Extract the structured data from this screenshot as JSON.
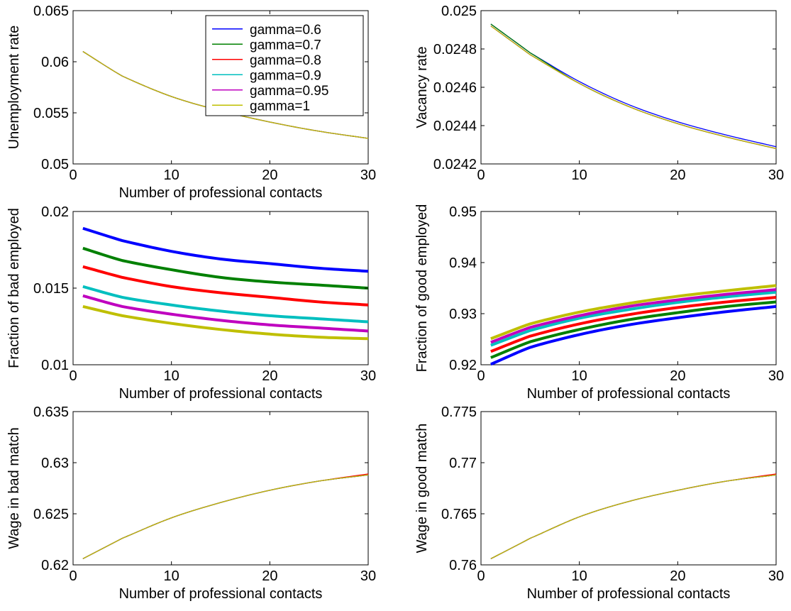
{
  "figure": {
    "legend": {
      "entries": [
        "gamma=0.6",
        "gamma=0.7",
        "gamma=0.8",
        "gamma=0.9",
        "gamma=0.95",
        "gamma=1"
      ],
      "colors": [
        "#0000ff",
        "#008000",
        "#ff0000",
        "#00bfbf",
        "#bf00bf",
        "#bfbf00"
      ],
      "position": "top-right"
    }
  },
  "chart_data": [
    {
      "type": "line",
      "xlabel": "Number of professional contacts",
      "ylabel": "Unemployment rate",
      "xlim": [
        0,
        30
      ],
      "ylim": [
        0.05,
        0.065
      ],
      "xticks": [
        0,
        10,
        20,
        30
      ],
      "xtick_labels": [
        "0",
        "10",
        "20",
        "30"
      ],
      "yticks": [
        0.05,
        0.055,
        0.06,
        0.065
      ],
      "ytick_labels": [
        "0.05",
        "0.055",
        "0.06",
        "0.065"
      ],
      "grid": false,
      "line_width": "thin",
      "x": [
        1,
        5,
        10,
        15,
        20,
        25,
        30
      ],
      "series": [
        {
          "name": "gamma=0.6",
          "color": "#0000ff",
          "values": [
            0.061,
            0.0586,
            0.0566,
            0.0552,
            0.0541,
            0.0532,
            0.0525
          ]
        },
        {
          "name": "gamma=0.7",
          "color": "#008000",
          "values": [
            0.061,
            0.0586,
            0.0566,
            0.0552,
            0.0541,
            0.0532,
            0.0525
          ]
        },
        {
          "name": "gamma=0.8",
          "color": "#ff0000",
          "values": [
            0.061,
            0.0586,
            0.0566,
            0.0552,
            0.0541,
            0.0532,
            0.0525
          ]
        },
        {
          "name": "gamma=0.9",
          "color": "#00bfbf",
          "values": [
            0.061,
            0.0586,
            0.0566,
            0.0552,
            0.0541,
            0.0532,
            0.0525
          ]
        },
        {
          "name": "gamma=0.95",
          "color": "#bf00bf",
          "values": [
            0.061,
            0.0586,
            0.0566,
            0.0552,
            0.0541,
            0.0532,
            0.0525
          ]
        },
        {
          "name": "gamma=1",
          "color": "#bfbf00",
          "values": [
            0.061,
            0.0586,
            0.0566,
            0.0552,
            0.0541,
            0.0532,
            0.0525
          ]
        }
      ]
    },
    {
      "type": "line",
      "xlabel": "",
      "ylabel": "Vacancy rate",
      "xlim": [
        0,
        30
      ],
      "ylim": [
        0.0242,
        0.025
      ],
      "xticks": [
        0,
        10,
        20,
        30
      ],
      "xtick_labels": [
        "0",
        "10",
        "20",
        "30"
      ],
      "yticks": [
        0.0242,
        0.0244,
        0.0246,
        0.0248,
        0.025
      ],
      "ytick_labels": [
        "0.0242",
        "0.0244",
        "0.0246",
        "0.0248",
        "0.025"
      ],
      "grid": false,
      "line_width": "thin",
      "x": [
        1,
        5,
        10,
        15,
        20,
        25,
        30
      ],
      "series": [
        {
          "name": "gamma=0.6",
          "color": "#0000ff",
          "values": [
            0.02493,
            0.02478,
            0.02463,
            0.02451,
            0.02442,
            0.02435,
            0.02429
          ]
        },
        {
          "name": "gamma=0.7",
          "color": "#008000",
          "values": [
            0.02493,
            0.02478,
            0.02462,
            0.0245,
            0.02441,
            0.02434,
            0.02428
          ]
        },
        {
          "name": "gamma=0.8",
          "color": "#ff0000",
          "values": [
            0.02492,
            0.02477,
            0.02462,
            0.0245,
            0.02441,
            0.02434,
            0.02428
          ]
        },
        {
          "name": "gamma=0.9",
          "color": "#00bfbf",
          "values": [
            0.02492,
            0.02477,
            0.02462,
            0.0245,
            0.02441,
            0.02434,
            0.02428
          ]
        },
        {
          "name": "gamma=0.95",
          "color": "#bf00bf",
          "values": [
            0.02492,
            0.02477,
            0.02462,
            0.0245,
            0.02441,
            0.02434,
            0.02428
          ]
        },
        {
          "name": "gamma=1",
          "color": "#bfbf00",
          "values": [
            0.02492,
            0.02477,
            0.02462,
            0.0245,
            0.02441,
            0.02434,
            0.02428
          ]
        }
      ]
    },
    {
      "type": "line",
      "xlabel": "Number of professional contacts",
      "ylabel": "Fraction of bad employed",
      "xlim": [
        0,
        30
      ],
      "ylim": [
        0.01,
        0.02
      ],
      "xticks": [
        0,
        10,
        20,
        30
      ],
      "xtick_labels": [
        "0",
        "10",
        "20",
        "30"
      ],
      "yticks": [
        0.01,
        0.015,
        0.02
      ],
      "ytick_labels": [
        "0.01",
        "0.015",
        "0.02"
      ],
      "grid": false,
      "line_width": "thick",
      "x": [
        1,
        5,
        10,
        15,
        20,
        25,
        30
      ],
      "series": [
        {
          "name": "gamma=0.6",
          "color": "#0000ff",
          "values": [
            0.0189,
            0.0181,
            0.0174,
            0.0169,
            0.0166,
            0.0163,
            0.0161
          ]
        },
        {
          "name": "gamma=0.7",
          "color": "#008000",
          "values": [
            0.0176,
            0.0168,
            0.0162,
            0.0157,
            0.0154,
            0.0152,
            0.015
          ]
        },
        {
          "name": "gamma=0.8",
          "color": "#ff0000",
          "values": [
            0.0164,
            0.0157,
            0.0151,
            0.0147,
            0.0144,
            0.0141,
            0.0139
          ]
        },
        {
          "name": "gamma=0.9",
          "color": "#00bfbf",
          "values": [
            0.0151,
            0.0144,
            0.0139,
            0.0135,
            0.0132,
            0.013,
            0.0128
          ]
        },
        {
          "name": "gamma=0.95",
          "color": "#bf00bf",
          "values": [
            0.0145,
            0.0138,
            0.0133,
            0.0129,
            0.0126,
            0.0124,
            0.0122
          ]
        },
        {
          "name": "gamma=1",
          "color": "#bfbf00",
          "values": [
            0.0138,
            0.0132,
            0.0127,
            0.0123,
            0.012,
            0.0118,
            0.0117
          ]
        }
      ]
    },
    {
      "type": "line",
      "xlabel": "Number of professional contacts",
      "ylabel": "Fraction of good employed",
      "xlim": [
        0,
        30
      ],
      "ylim": [
        0.92,
        0.95
      ],
      "xticks": [
        0,
        10,
        20,
        30
      ],
      "xtick_labels": [
        "0",
        "10",
        "20",
        "30"
      ],
      "yticks": [
        0.92,
        0.93,
        0.94,
        0.95
      ],
      "ytick_labels": [
        "0.92",
        "0.93",
        "0.94",
        "0.95"
      ],
      "grid": false,
      "line_width": "thick",
      "x": [
        1,
        5,
        10,
        15,
        20,
        25,
        30
      ],
      "series": [
        {
          "name": "gamma=0.6",
          "color": "#0000ff",
          "values": [
            0.9201,
            0.9234,
            0.9259,
            0.9278,
            0.9292,
            0.9304,
            0.9314
          ]
        },
        {
          "name": "gamma=0.7",
          "color": "#008000",
          "values": [
            0.9214,
            0.9245,
            0.9269,
            0.9288,
            0.9302,
            0.9314,
            0.9323
          ]
        },
        {
          "name": "gamma=0.8",
          "color": "#ff0000",
          "values": [
            0.9226,
            0.9256,
            0.928,
            0.9298,
            0.9312,
            0.9323,
            0.9332
          ]
        },
        {
          "name": "gamma=0.9",
          "color": "#00bfbf",
          "values": [
            0.9238,
            0.9267,
            0.9291,
            0.9308,
            0.9322,
            0.9333,
            0.9342
          ]
        },
        {
          "name": "gamma=0.95",
          "color": "#bf00bf",
          "values": [
            0.9244,
            0.9273,
            0.9296,
            0.9314,
            0.9327,
            0.9338,
            0.9347
          ]
        },
        {
          "name": "gamma=1",
          "color": "#bfbf00",
          "values": [
            0.9251,
            0.928,
            0.9303,
            0.932,
            0.9334,
            0.9345,
            0.9355
          ]
        }
      ]
    },
    {
      "type": "line",
      "xlabel": "Number of professional contacts",
      "ylabel": "Wage in bad match",
      "xlim": [
        0,
        30
      ],
      "ylim": [
        0.62,
        0.635
      ],
      "xticks": [
        0,
        10,
        20,
        30
      ],
      "xtick_labels": [
        "0",
        "10",
        "20",
        "30"
      ],
      "yticks": [
        0.62,
        0.625,
        0.63,
        0.635
      ],
      "ytick_labels": [
        "0.62",
        "0.625",
        "0.63",
        "0.635"
      ],
      "grid": false,
      "line_width": "thin",
      "x": [
        1,
        5,
        10,
        15,
        20,
        25,
        30
      ],
      "series": [
        {
          "name": "gamma=0.6",
          "color": "#0000ff",
          "values": [
            0.6206,
            0.6226,
            0.6246,
            0.6261,
            0.6273,
            0.6282,
            0.6288
          ]
        },
        {
          "name": "gamma=0.7",
          "color": "#008000",
          "values": [
            0.6206,
            0.6226,
            0.6246,
            0.6261,
            0.6273,
            0.6282,
            0.6288
          ]
        },
        {
          "name": "gamma=0.8",
          "color": "#ff0000",
          "values": [
            0.6206,
            0.6226,
            0.6246,
            0.6261,
            0.6273,
            0.6282,
            0.6289
          ]
        },
        {
          "name": "gamma=0.9",
          "color": "#00bfbf",
          "values": [
            0.6206,
            0.6226,
            0.6246,
            0.6261,
            0.6273,
            0.6282,
            0.6288
          ]
        },
        {
          "name": "gamma=0.95",
          "color": "#bf00bf",
          "values": [
            0.6206,
            0.6226,
            0.6246,
            0.6261,
            0.6273,
            0.6282,
            0.6288
          ]
        },
        {
          "name": "gamma=1",
          "color": "#bfbf00",
          "values": [
            0.6206,
            0.6226,
            0.6246,
            0.6261,
            0.6273,
            0.6282,
            0.6288
          ]
        }
      ]
    },
    {
      "type": "line",
      "xlabel": "Number of professional contacts",
      "ylabel": "Wage in good match",
      "xlim": [
        0,
        30
      ],
      "ylim": [
        0.76,
        0.775
      ],
      "xticks": [
        0,
        10,
        20,
        30
      ],
      "xtick_labels": [
        "0",
        "10",
        "20",
        "30"
      ],
      "yticks": [
        0.76,
        0.765,
        0.77,
        0.775
      ],
      "ytick_labels": [
        "0.76",
        "0.765",
        "0.77",
        "0.775"
      ],
      "grid": false,
      "line_width": "thin",
      "x": [
        1,
        5,
        10,
        15,
        20,
        25,
        30
      ],
      "series": [
        {
          "name": "gamma=0.6",
          "color": "#0000ff",
          "values": [
            0.7606,
            0.7626,
            0.7647,
            0.7662,
            0.7673,
            0.7682,
            0.7688
          ]
        },
        {
          "name": "gamma=0.7",
          "color": "#008000",
          "values": [
            0.7606,
            0.7626,
            0.7647,
            0.7662,
            0.7673,
            0.7682,
            0.7688
          ]
        },
        {
          "name": "gamma=0.8",
          "color": "#ff0000",
          "values": [
            0.7606,
            0.7626,
            0.7647,
            0.7662,
            0.7673,
            0.7682,
            0.7689
          ]
        },
        {
          "name": "gamma=0.9",
          "color": "#00bfbf",
          "values": [
            0.7606,
            0.7626,
            0.7647,
            0.7662,
            0.7673,
            0.7682,
            0.7688
          ]
        },
        {
          "name": "gamma=0.95",
          "color": "#bf00bf",
          "values": [
            0.7606,
            0.7626,
            0.7647,
            0.7662,
            0.7673,
            0.7682,
            0.7688
          ]
        },
        {
          "name": "gamma=1",
          "color": "#bfbf00",
          "values": [
            0.7606,
            0.7626,
            0.7647,
            0.7662,
            0.7673,
            0.7682,
            0.7688
          ]
        }
      ]
    }
  ]
}
